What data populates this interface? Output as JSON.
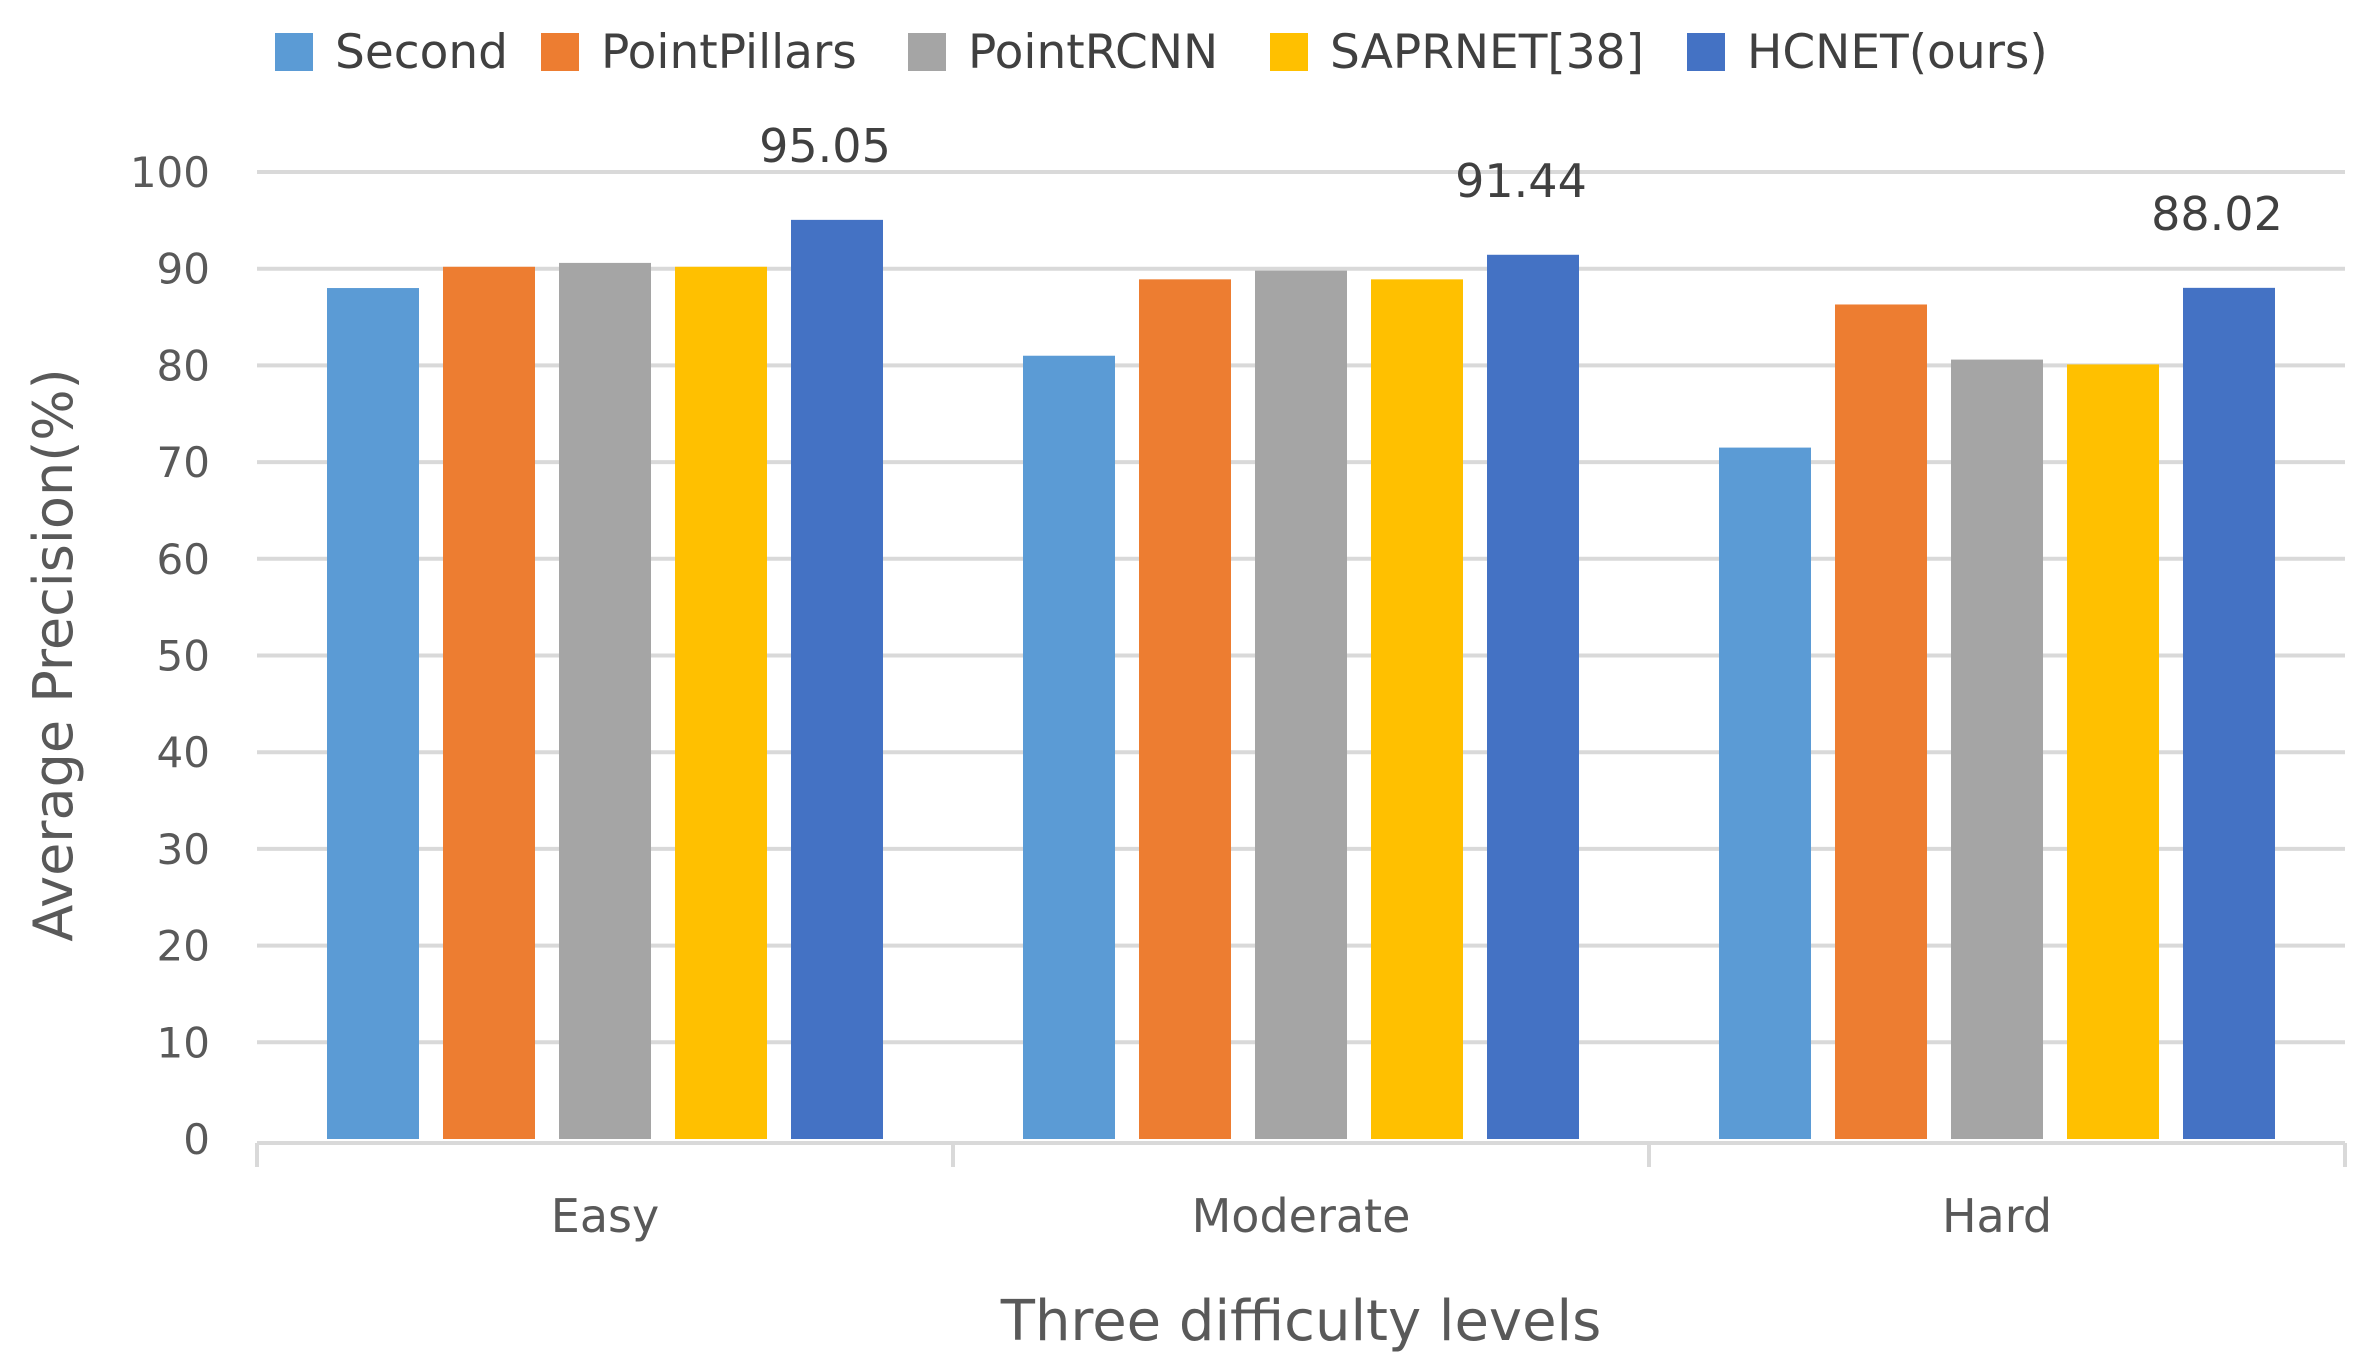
{
  "chart_data": {
    "type": "bar",
    "title": "",
    "xlabel": "Three difficulty levels",
    "ylabel": "Average Precision(%)",
    "categories": [
      "Easy",
      "Moderate",
      "Hard"
    ],
    "ylim": [
      0,
      100
    ],
    "yticks": [
      0,
      10,
      20,
      30,
      40,
      50,
      60,
      70,
      80,
      90,
      100
    ],
    "grid": true,
    "legend_position": "top",
    "series": [
      {
        "name": "Second",
        "color": "#5B9BD5",
        "values": [
          88.0,
          81.0,
          71.5
        ]
      },
      {
        "name": "PointPillars",
        "color": "#ED7D31",
        "values": [
          90.2,
          88.9,
          86.3
        ]
      },
      {
        "name": "PointRCNN",
        "color": "#A5A5A5",
        "values": [
          90.6,
          89.8,
          80.6
        ]
      },
      {
        "name": "SAPRNET[38]",
        "color": "#FFC000",
        "values": [
          90.2,
          88.9,
          80.1
        ]
      },
      {
        "name": "HCNET(ours)",
        "color": "#4472C4",
        "values": [
          95.05,
          91.44,
          88.02
        ]
      }
    ],
    "data_labels": [
      {
        "series": "HCNET(ours)",
        "category": "Easy",
        "text": "95.05"
      },
      {
        "series": "HCNET(ours)",
        "category": "Moderate",
        "text": "91.44"
      },
      {
        "series": "HCNET(ours)",
        "category": "Hard",
        "text": "88.02"
      }
    ]
  }
}
